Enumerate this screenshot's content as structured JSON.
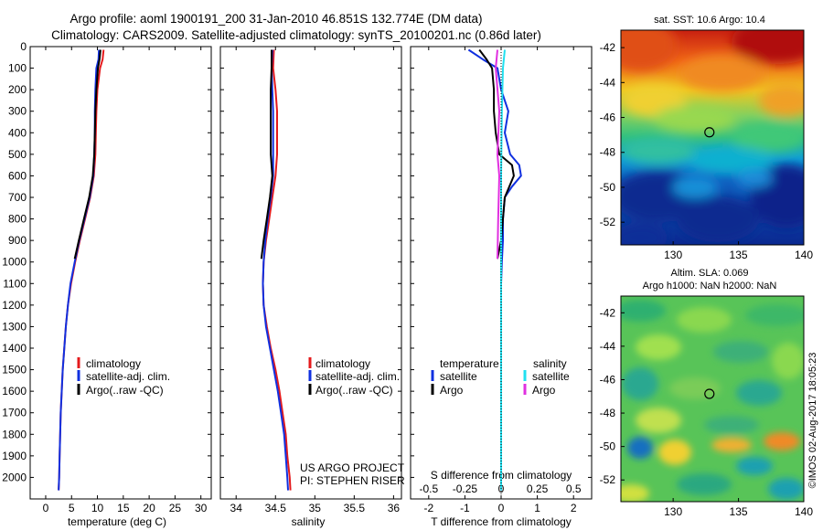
{
  "header": {
    "line1": "Argo profile: aoml 1900191_200 31-Jan-2010 46.851S 132.774E (DM data)",
    "line2": "Climatology: CARS2009. Satellite-adjusted climatology: synTS_20100201.nc (0.86d later)"
  },
  "colors": {
    "climatology": "#e41a1c",
    "satellite": "#1030e0",
    "argo": "#000000",
    "sal_satellite": "#20e0f0",
    "sal_argo": "#e030e0"
  },
  "chart_data": [
    {
      "type": "line",
      "xlabel": "temperature (deg C)",
      "ylabel": "",
      "xlim": [
        -3,
        32
      ],
      "ylim": [
        2100,
        0
      ],
      "xticks": [
        "0",
        "5",
        "10",
        "15",
        "20",
        "25",
        "30"
      ],
      "yticks": [
        "0",
        "100",
        "200",
        "300",
        "400",
        "500",
        "600",
        "700",
        "800",
        "900",
        "1000",
        "1100",
        "1200",
        "1300",
        "1400",
        "1500",
        "1600",
        "1700",
        "1800",
        "1900",
        "2000"
      ],
      "legend": [
        "climatology",
        "satellite-adj. clim.",
        "Argo(..raw -QC)"
      ],
      "legend_placement": "lower-right",
      "series": [
        {
          "name": "climatology",
          "color_key": "climatology",
          "points": [
            [
              11.2,
              15
            ],
            [
              11,
              60
            ],
            [
              10.5,
              100
            ],
            [
              10,
              200
            ],
            [
              9.8,
              300
            ],
            [
              9.7,
              400
            ],
            [
              9.6,
              500
            ],
            [
              9.3,
              600
            ],
            [
              8.6,
              700
            ],
            [
              7.6,
              800
            ],
            [
              6.6,
              900
            ],
            [
              5.7,
              1000
            ],
            [
              4.9,
              1100
            ],
            [
              4.3,
              1200
            ],
            [
              3.9,
              1300
            ],
            [
              3.6,
              1400
            ],
            [
              3.3,
              1500
            ],
            [
              3.1,
              1600
            ],
            [
              2.9,
              1700
            ],
            [
              2.8,
              1800
            ],
            [
              2.7,
              1900
            ],
            [
              2.6,
              2000
            ],
            [
              2.5,
              2060
            ]
          ]
        },
        {
          "name": "satellite-adj. clim.",
          "color_key": "satellite",
          "points": [
            [
              10.3,
              15
            ],
            [
              10.2,
              60
            ],
            [
              9.8,
              100
            ],
            [
              9.6,
              200
            ],
            [
              9.5,
              300
            ],
            [
              9.5,
              400
            ],
            [
              9.4,
              500
            ],
            [
              9.2,
              600
            ],
            [
              8.5,
              700
            ],
            [
              7.5,
              800
            ],
            [
              6.5,
              900
            ],
            [
              5.6,
              1000
            ],
            [
              4.8,
              1100
            ],
            [
              4.3,
              1200
            ],
            [
              3.9,
              1300
            ],
            [
              3.6,
              1400
            ],
            [
              3.3,
              1500
            ],
            [
              3.1,
              1600
            ],
            [
              2.9,
              1700
            ],
            [
              2.8,
              1800
            ],
            [
              2.7,
              1900
            ],
            [
              2.6,
              2000
            ],
            [
              2.5,
              2060
            ]
          ]
        },
        {
          "name": "Argo(..raw -QC)",
          "color_key": "argo",
          "points": [
            [
              10.6,
              15
            ],
            [
              10.4,
              60
            ],
            [
              10.1,
              100
            ],
            [
              9.8,
              200
            ],
            [
              9.6,
              300
            ],
            [
              9.5,
              400
            ],
            [
              9.4,
              500
            ],
            [
              9.1,
              600
            ],
            [
              8.4,
              700
            ],
            [
              7.4,
              800
            ],
            [
              6.4,
              900
            ],
            [
              5.6,
              985
            ]
          ]
        }
      ]
    },
    {
      "type": "line",
      "xlabel": "salinity",
      "ylabel": "",
      "xlim": [
        33.8,
        36.1
      ],
      "ylim": [
        2100,
        0
      ],
      "xticks": [
        "34",
        "34.5",
        "35",
        "35.5",
        "36"
      ],
      "legend": [
        "climatology",
        "satellite-adj. clim.",
        "Argo(..raw -QC)"
      ],
      "legend_placement": "lower-right",
      "annotation": [
        "US ARGO PROJECT",
        "PI: STEPHEN RISER"
      ],
      "series": [
        {
          "name": "climatology",
          "color_key": "climatology",
          "points": [
            [
              34.48,
              15
            ],
            [
              34.47,
              100
            ],
            [
              34.5,
              200
            ],
            [
              34.52,
              300
            ],
            [
              34.52,
              400
            ],
            [
              34.52,
              500
            ],
            [
              34.5,
              600
            ],
            [
              34.46,
              700
            ],
            [
              34.42,
              800
            ],
            [
              34.38,
              900
            ],
            [
              34.35,
              1000
            ],
            [
              34.34,
              1100
            ],
            [
              34.35,
              1200
            ],
            [
              34.39,
              1300
            ],
            [
              34.44,
              1400
            ],
            [
              34.5,
              1500
            ],
            [
              34.55,
              1600
            ],
            [
              34.59,
              1700
            ],
            [
              34.63,
              1800
            ],
            [
              34.65,
              1900
            ],
            [
              34.68,
              2000
            ],
            [
              34.69,
              2060
            ]
          ]
        },
        {
          "name": "satellite-adj. clim.",
          "color_key": "satellite",
          "points": [
            [
              34.46,
              15
            ],
            [
              34.45,
              100
            ],
            [
              34.46,
              200
            ],
            [
              34.47,
              300
            ],
            [
              34.47,
              400
            ],
            [
              34.47,
              500
            ],
            [
              34.47,
              600
            ],
            [
              34.44,
              700
            ],
            [
              34.4,
              800
            ],
            [
              34.37,
              900
            ],
            [
              34.35,
              1000
            ],
            [
              34.34,
              1100
            ],
            [
              34.35,
              1200
            ],
            [
              34.38,
              1300
            ],
            [
              34.43,
              1400
            ],
            [
              34.48,
              1500
            ],
            [
              34.53,
              1600
            ],
            [
              34.57,
              1700
            ],
            [
              34.61,
              1800
            ],
            [
              34.63,
              1900
            ],
            [
              34.65,
              2000
            ],
            [
              34.66,
              2060
            ]
          ]
        },
        {
          "name": "Argo(..raw -QC)",
          "color_key": "argo",
          "points": [
            [
              34.45,
              15
            ],
            [
              34.45,
              100
            ],
            [
              34.44,
              200
            ],
            [
              34.44,
              300
            ],
            [
              34.44,
              400
            ],
            [
              34.44,
              500
            ],
            [
              34.46,
              600
            ],
            [
              34.43,
              700
            ],
            [
              34.39,
              800
            ],
            [
              34.35,
              900
            ],
            [
              34.32,
              985
            ]
          ]
        }
      ]
    },
    {
      "type": "line",
      "xlabel": "T difference from climatology",
      "ylabel": "",
      "xlim": [
        -2.5,
        2.5
      ],
      "ylim": [
        2100,
        0
      ],
      "xticks": [
        "-2",
        "-1",
        "0",
        "1",
        "2"
      ],
      "top_xlabel": "S difference from climatology",
      "top_xticks": [
        "-0.5",
        "-0.25",
        "0",
        "0.25",
        "0.5"
      ],
      "legend_left_title": "temperature",
      "legend_right_title": "salinity",
      "legend_left": [
        "satellite",
        "Argo"
      ],
      "legend_right": [
        "satellite",
        "Argo"
      ],
      "series": [
        {
          "name": "satellite",
          "color_key": "satellite",
          "points": [
            [
              -0.9,
              15
            ],
            [
              -0.5,
              60
            ],
            [
              -0.1,
              100
            ],
            [
              0,
              200
            ],
            [
              0.2,
              300
            ],
            [
              0.1,
              400
            ],
            [
              0.25,
              500
            ],
            [
              0.5,
              550
            ],
            [
              0.55,
              600
            ],
            [
              0.3,
              650
            ],
            [
              0.1,
              700
            ],
            [
              0.05,
              800
            ],
            [
              0.05,
              900
            ],
            [
              0.02,
              1000
            ],
            [
              0,
              1100
            ],
            [
              0,
              1500
            ],
            [
              0,
              2060
            ]
          ]
        },
        {
          "name": "Argo",
          "color_key": "argo",
          "points": [
            [
              -0.6,
              15
            ],
            [
              -0.4,
              60
            ],
            [
              -0.25,
              100
            ],
            [
              -0.2,
              200
            ],
            [
              -0.2,
              300
            ],
            [
              -0.15,
              400
            ],
            [
              -0.05,
              500
            ],
            [
              0.3,
              550
            ],
            [
              0.35,
              600
            ],
            [
              0.1,
              700
            ],
            [
              0.05,
              800
            ],
            [
              0.0,
              900
            ],
            [
              -0.1,
              985
            ]
          ]
        },
        {
          "name": "satellite",
          "color_key": "sal_satellite",
          "points": [
            [
              0.1,
              15
            ],
            [
              0.05,
              100
            ],
            [
              0.02,
              300
            ],
            [
              0.0,
              600
            ],
            [
              0.0,
              1000
            ],
            [
              0.0,
              1500
            ],
            [
              0.0,
              2060
            ]
          ]
        },
        {
          "name": "Argo",
          "color_key": "sal_argo",
          "points": [
            [
              -0.1,
              15
            ],
            [
              -0.15,
              100
            ],
            [
              -0.05,
              300
            ],
            [
              -0.1,
              500
            ],
            [
              -0.05,
              600
            ],
            [
              -0.08,
              800
            ],
            [
              -0.1,
              985
            ]
          ]
        }
      ]
    },
    {
      "type": "heatmap",
      "title": "sat. SST: 10.6 Argo: 10.4",
      "xticks": [
        "130",
        "135",
        "140"
      ],
      "yticks": [
        "-42",
        "-44",
        "-46",
        "-48",
        "-50",
        "-52"
      ],
      "xlim": [
        126,
        140
      ],
      "ylim": [
        -53.3,
        -41.0
      ],
      "marker": {
        "lon": 132.774,
        "lat": -46.851
      }
    },
    {
      "type": "heatmap",
      "title": "Altim. SLA: 0.069",
      "subtitle": "Argo h1000: NaN h2000: NaN",
      "xticks": [
        "130",
        "135",
        "140"
      ],
      "yticks": [
        "-42",
        "-44",
        "-46",
        "-48",
        "-50",
        "-52"
      ],
      "xlim": [
        126,
        140
      ],
      "ylim": [
        -53.3,
        -41.0
      ],
      "marker": {
        "lon": 132.774,
        "lat": -46.851
      }
    }
  ],
  "footer": {
    "credit": "©IMOS 02-Aug-2017 18:05:23"
  }
}
